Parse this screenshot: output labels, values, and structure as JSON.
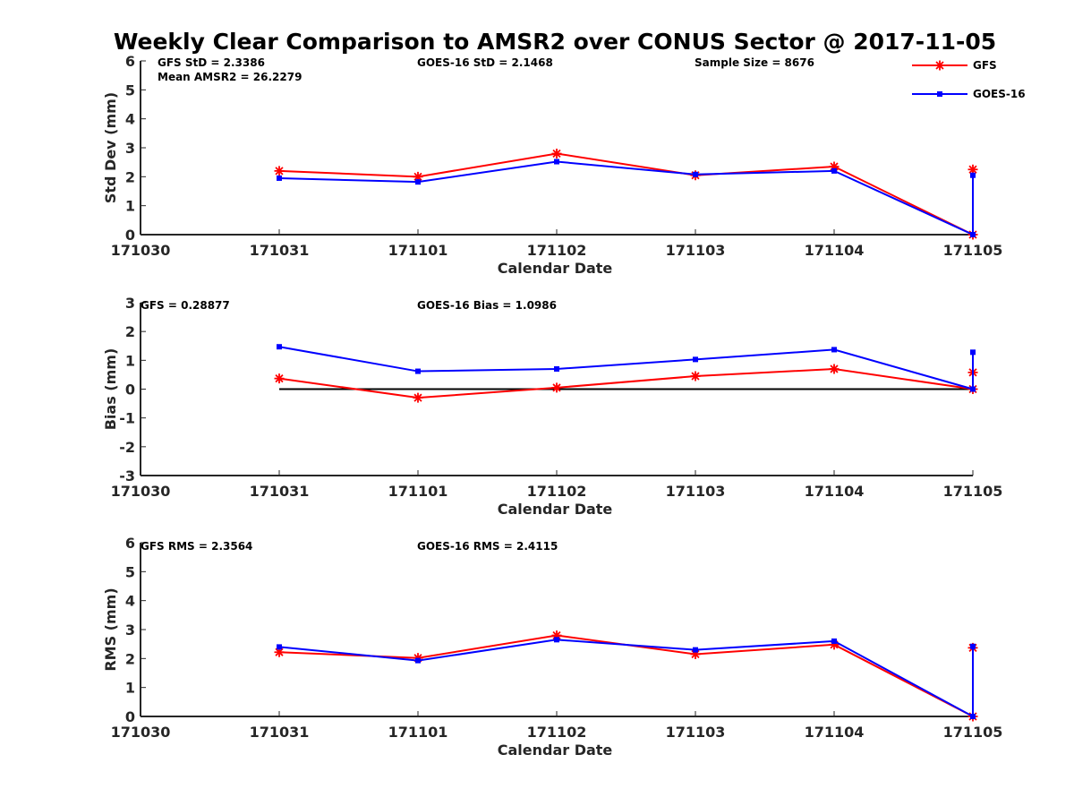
{
  "title": "Weekly Clear Comparison to AMSR2 over CONUS Sector @ 2017-11-05",
  "colors": {
    "gfs": "#ff0000",
    "goes": "#0000ff",
    "axis": "#262626",
    "zero": "#000000"
  },
  "legend": {
    "entries": [
      "GFS",
      "GOES-16"
    ],
    "placement": "top-right"
  },
  "chart_data": [
    {
      "type": "line",
      "title": "",
      "xlabel": "Calendar Date",
      "ylabel": "Std Dev (mm)",
      "x_tick_labels": [
        "171030",
        "171031",
        "171101",
        "171102",
        "171103",
        "171104",
        "171105"
      ],
      "xlim": [
        0,
        6
      ],
      "ylim": [
        0,
        6
      ],
      "y_ticks": [
        0,
        1,
        2,
        3,
        4,
        5,
        6
      ],
      "series": [
        {
          "name": "GFS",
          "marker": "star",
          "x": [
            1,
            2,
            3,
            4,
            5,
            6,
            6
          ],
          "values": [
            2.2,
            2.0,
            2.8,
            2.05,
            2.35,
            0.0,
            2.25
          ]
        },
        {
          "name": "GOES-16",
          "marker": "square",
          "x": [
            1,
            2,
            3,
            4,
            5,
            6,
            6
          ],
          "values": [
            1.95,
            1.82,
            2.52,
            2.08,
            2.2,
            0.0,
            2.05
          ]
        }
      ],
      "annotations": [
        "GFS StD = 2.3386",
        "Mean AMSR2 = 26.2279",
        "GOES-16 StD = 2.1468",
        "Sample Size = 8676"
      ]
    },
    {
      "type": "line",
      "title": "",
      "xlabel": "Calendar Date",
      "ylabel": "Bias (mm)",
      "x_tick_labels": [
        "171030",
        "171031",
        "171101",
        "171102",
        "171103",
        "171104",
        "171105"
      ],
      "xlim": [
        0,
        6
      ],
      "ylim": [
        -3,
        3
      ],
      "y_ticks": [
        -3,
        -2,
        -1,
        0,
        1,
        2,
        3
      ],
      "zero_line": {
        "x": [
          1,
          6
        ],
        "y": 0
      },
      "series": [
        {
          "name": "GFS",
          "marker": "star",
          "x": [
            1,
            2,
            3,
            4,
            5,
            6,
            6
          ],
          "values": [
            0.37,
            -0.3,
            0.05,
            0.45,
            0.7,
            0.0,
            0.58
          ]
        },
        {
          "name": "GOES-16",
          "marker": "square",
          "x": [
            1,
            2,
            3,
            4,
            5,
            6,
            6
          ],
          "values": [
            1.47,
            0.62,
            0.7,
            1.03,
            1.37,
            0.0,
            1.28
          ]
        }
      ],
      "annotations": [
        "GFS = 0.28877",
        "GOES-16 Bias  = 1.0986"
      ]
    },
    {
      "type": "line",
      "title": "",
      "xlabel": "Calendar Date",
      "ylabel": "RMS (mm)",
      "x_tick_labels": [
        "171030",
        "171031",
        "171101",
        "171102",
        "171103",
        "171104",
        "171105"
      ],
      "xlim": [
        0,
        6
      ],
      "ylim": [
        0,
        6
      ],
      "y_ticks": [
        0,
        1,
        2,
        3,
        4,
        5,
        6
      ],
      "series": [
        {
          "name": "GFS",
          "marker": "star",
          "x": [
            1,
            2,
            3,
            4,
            5,
            6,
            6
          ],
          "values": [
            2.22,
            2.02,
            2.8,
            2.15,
            2.48,
            0.0,
            2.37
          ]
        },
        {
          "name": "GOES-16",
          "marker": "square",
          "x": [
            1,
            2,
            3,
            4,
            5,
            6,
            6
          ],
          "values": [
            2.4,
            1.93,
            2.65,
            2.3,
            2.6,
            0.0,
            2.42
          ]
        }
      ],
      "annotations": [
        "GFS RMS = 2.3564",
        "GOES-16 RMS = 2.4115"
      ]
    }
  ]
}
